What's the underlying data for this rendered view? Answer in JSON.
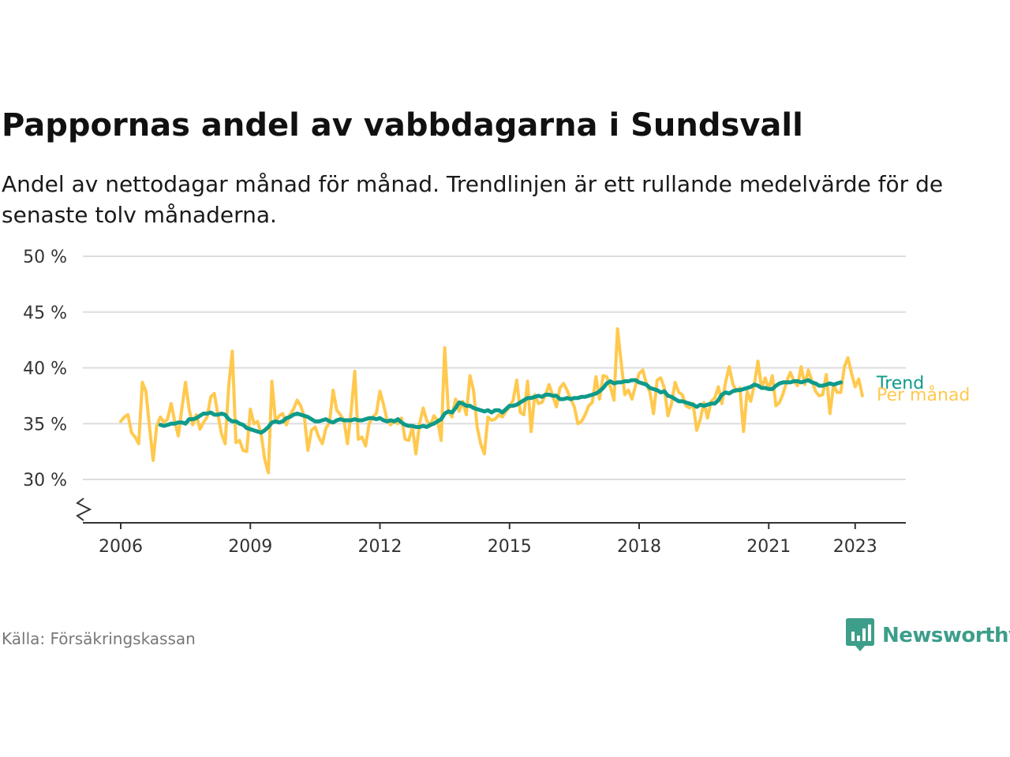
{
  "header": {
    "title": "Pappornas andel av vabbdagarna i Sundsvall",
    "subtitle": "Andel av nettodagar månad för månad. Trendlinjen är ett rullande medelvärde för de senaste tolv månaderna."
  },
  "footer": {
    "source": "Källa: Försäkringskassan",
    "brand": "Newsworthy",
    "brand_icon": "newsworthy-logo-icon",
    "brand_color": "#3d9e8a"
  },
  "chart_data": {
    "type": "line",
    "x_start": "2006-01",
    "ylim": [
      27,
      50
    ],
    "y_ticks": [
      30,
      35,
      40,
      45,
      50
    ],
    "y_tick_labels": [
      "30 %",
      "35 %",
      "40 %",
      "45 %",
      "50 %"
    ],
    "y_axis_break": true,
    "x_ticks": [
      2006,
      2009,
      2012,
      2015,
      2018,
      2021,
      2023
    ],
    "x_tick_labels": [
      "2006",
      "2009",
      "2012",
      "2015",
      "2018",
      "2021",
      "2023"
    ],
    "grid": true,
    "colors": {
      "monthly": "#ffc94f",
      "trend": "#0f9a8a",
      "grid": "#dddddd",
      "axis": "#333333"
    },
    "series": [
      {
        "name": "Per månad",
        "values": [
          35.2,
          35.6,
          35.8,
          34.2,
          33.8,
          33.2,
          38.7,
          37.9,
          34.7,
          31.7,
          34.8,
          35.6,
          35.1,
          35.4,
          36.8,
          35.2,
          33.9,
          36.4,
          38.7,
          36.3,
          34.9,
          35.8,
          34.5,
          35.1,
          35.6,
          37.4,
          37.7,
          35.8,
          34.1,
          33.2,
          38.4,
          41.5,
          33.3,
          33.5,
          32.6,
          32.5,
          36.3,
          35.0,
          35.2,
          34.1,
          31.8,
          30.6,
          38.8,
          35.2,
          35.7,
          35.9,
          34.9,
          35.8,
          36.3,
          37.1,
          36.6,
          35.6,
          32.6,
          34.4,
          34.7,
          33.8,
          33.2,
          34.6,
          35.1,
          38.0,
          36.2,
          35.8,
          35.3,
          33.2,
          36.1,
          39.7,
          33.6,
          33.8,
          33.0,
          35.0,
          35.6,
          35.9,
          37.9,
          36.7,
          35.3,
          34.9,
          35.3,
          35.0,
          35.5,
          33.6,
          33.5,
          34.7,
          32.3,
          35.0,
          36.4,
          35.3,
          34.8,
          35.7,
          35.3,
          33.5,
          41.8,
          36.1,
          35.6,
          37.2,
          36.1,
          37.0,
          35.8,
          39.3,
          38.0,
          34.7,
          33.2,
          32.3,
          35.6,
          35.3,
          35.4,
          35.8,
          35.6,
          36.1,
          36.5,
          37.1,
          38.9,
          36.0,
          35.8,
          38.8,
          34.3,
          37.6,
          36.8,
          36.9,
          37.6,
          38.5,
          37.5,
          36.5,
          38.2,
          38.6,
          38.0,
          37.2,
          36.5,
          35.0,
          35.2,
          35.8,
          36.6,
          36.9,
          39.2,
          37.2,
          39.3,
          39.2,
          38.3,
          37.1,
          43.5,
          40.5,
          37.6,
          38.0,
          37.2,
          38.4,
          39.5,
          39.8,
          38.6,
          37.8,
          35.9,
          38.9,
          39.1,
          38.2,
          35.7,
          36.8,
          38.7,
          37.8,
          37.6,
          36.6,
          36.4,
          36.8,
          34.4,
          35.4,
          36.9,
          35.5,
          37.0,
          37.3,
          38.3,
          36.8,
          38.7,
          40.1,
          38.6,
          37.9,
          38.2,
          34.3,
          37.9,
          37.0,
          38.5,
          40.6,
          38.2,
          39.1,
          38.1,
          39.3,
          36.6,
          36.9,
          37.7,
          38.8,
          39.6,
          38.8,
          38.4,
          40.1,
          38.5,
          39.8,
          38.8,
          37.9,
          37.5,
          37.6,
          39.4,
          35.9,
          38.5,
          37.8,
          37.8,
          40.1,
          40.9,
          39.5,
          38.3,
          39.0,
          37.5
        ]
      },
      {
        "name": "Trend",
        "start": "2006-12",
        "values": [
          34.9,
          34.8,
          34.9,
          35.0,
          35.0,
          35.1,
          35.1,
          35.0,
          35.4,
          35.4,
          35.5,
          35.7,
          35.9,
          35.9,
          36.0,
          35.8,
          35.8,
          35.9,
          35.8,
          35.4,
          35.2,
          35.2,
          35.0,
          34.9,
          34.6,
          34.5,
          34.4,
          34.3,
          34.2,
          34.4,
          34.7,
          35.1,
          35.2,
          35.1,
          35.2,
          35.5,
          35.6,
          35.8,
          35.9,
          35.8,
          35.7,
          35.6,
          35.4,
          35.2,
          35.2,
          35.3,
          35.4,
          35.2,
          35.1,
          35.3,
          35.4,
          35.3,
          35.3,
          35.3,
          35.4,
          35.3,
          35.3,
          35.4,
          35.5,
          35.5,
          35.4,
          35.5,
          35.3,
          35.2,
          35.3,
          35.2,
          35.4,
          35.1,
          34.9,
          34.8,
          34.8,
          34.7,
          34.7,
          34.8,
          34.7,
          34.9,
          35.0,
          35.2,
          35.4,
          35.9,
          36.1,
          36.0,
          36.4,
          36.9,
          36.8,
          36.6,
          36.6,
          36.4,
          36.3,
          36.2,
          36.1,
          36.2,
          36.0,
          36.2,
          36.2,
          36.0,
          36.3,
          36.6,
          36.6,
          36.7,
          36.9,
          37.1,
          37.3,
          37.3,
          37.4,
          37.5,
          37.4,
          37.6,
          37.6,
          37.5,
          37.5,
          37.2,
          37.2,
          37.3,
          37.2,
          37.3,
          37.3,
          37.4,
          37.4,
          37.5,
          37.6,
          37.7,
          37.9,
          38.2,
          38.6,
          38.8,
          38.6,
          38.7,
          38.7,
          38.8,
          38.8,
          38.9,
          38.9,
          38.7,
          38.6,
          38.5,
          38.2,
          38.1,
          38.0,
          37.8,
          37.9,
          37.5,
          37.4,
          37.2,
          37.0,
          37.0,
          36.9,
          36.8,
          36.7,
          36.5,
          36.7,
          36.6,
          36.7,
          36.8,
          36.8,
          37.1,
          37.6,
          37.8,
          37.7,
          37.9,
          38.0,
          38.0,
          38.1,
          38.2,
          38.3,
          38.5,
          38.4,
          38.2,
          38.2,
          38.1,
          38.1,
          38.4,
          38.6,
          38.7,
          38.7,
          38.7,
          38.8,
          38.8,
          38.7,
          38.8,
          38.9,
          38.7,
          38.6,
          38.4,
          38.4,
          38.5,
          38.6,
          38.5,
          38.6,
          38.7
        ]
      }
    ]
  }
}
